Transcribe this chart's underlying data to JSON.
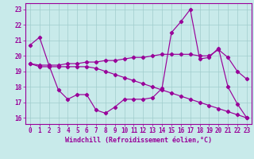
{
  "bg_color": "#c8eaea",
  "line_color": "#990099",
  "grid_color": "#a0cccc",
  "xlabel": "Windchill (Refroidissement éolien,°C)",
  "tick_color": "#990099",
  "ylabel_ticks": [
    16,
    17,
    18,
    19,
    20,
    21,
    22,
    23
  ],
  "xlim": [
    -0.5,
    23.5
  ],
  "ylim": [
    15.6,
    23.4
  ],
  "line1_x": [
    0,
    1,
    2,
    3,
    4,
    5,
    6,
    7,
    8,
    9,
    10,
    11,
    12,
    13,
    14,
    15,
    16,
    17,
    18,
    19,
    20,
    21,
    22,
    23
  ],
  "line1_y": [
    20.7,
    21.2,
    19.4,
    17.8,
    17.2,
    17.5,
    17.5,
    16.5,
    16.3,
    16.7,
    17.2,
    17.2,
    17.2,
    17.3,
    17.9,
    21.5,
    22.2,
    23.0,
    19.8,
    19.9,
    20.5,
    18.0,
    16.9,
    16.0
  ],
  "line2_x": [
    0,
    1,
    2,
    3,
    4,
    5,
    6,
    7,
    8,
    9,
    10,
    11,
    12,
    13,
    14,
    15,
    16,
    17,
    18,
    19,
    20,
    21,
    22,
    23
  ],
  "line2_y": [
    19.5,
    19.4,
    19.4,
    19.4,
    19.5,
    19.5,
    19.6,
    19.6,
    19.7,
    19.7,
    19.8,
    19.9,
    19.9,
    20.0,
    20.1,
    20.1,
    20.1,
    20.1,
    20.0,
    20.0,
    20.4,
    19.9,
    19.0,
    18.5
  ],
  "line3_x": [
    0,
    1,
    2,
    3,
    4,
    5,
    6,
    7,
    8,
    9,
    10,
    11,
    12,
    13,
    14,
    15,
    16,
    17,
    18,
    19,
    20,
    21,
    22,
    23
  ],
  "line3_y": [
    19.5,
    19.3,
    19.3,
    19.3,
    19.3,
    19.3,
    19.3,
    19.2,
    19.0,
    18.8,
    18.6,
    18.4,
    18.2,
    18.0,
    17.8,
    17.6,
    17.4,
    17.2,
    17.0,
    16.8,
    16.6,
    16.4,
    16.2,
    16.0
  ],
  "tick_fontsize": 5.5,
  "xlabel_fontsize": 6.0
}
